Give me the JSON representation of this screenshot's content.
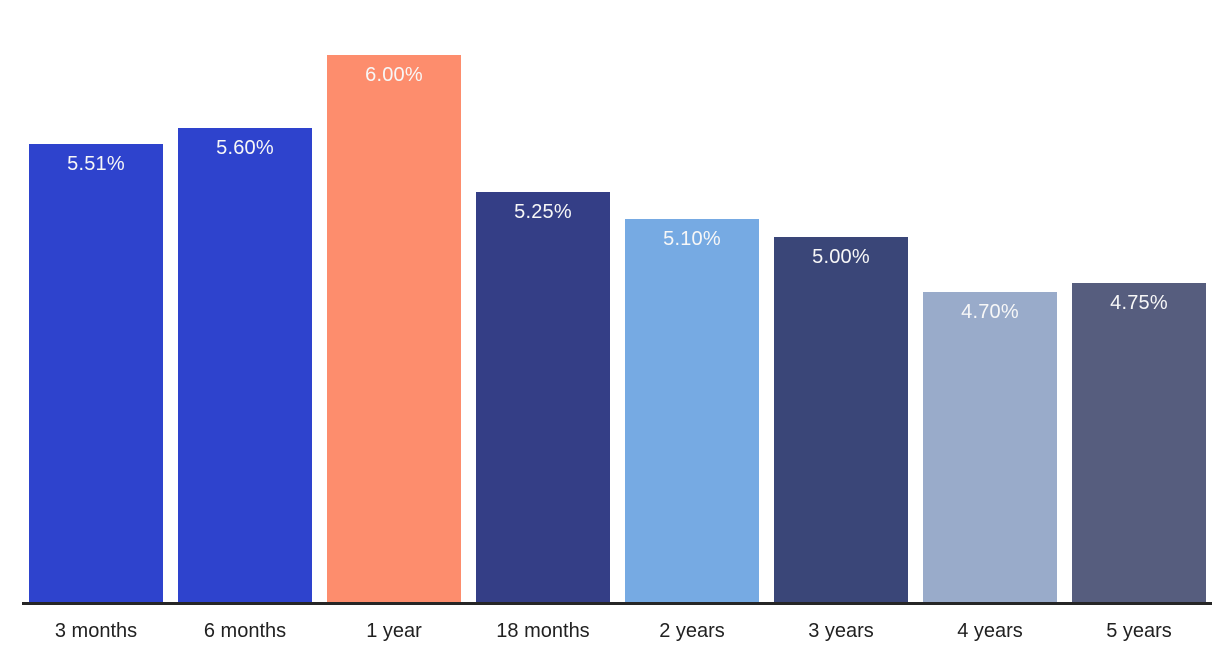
{
  "chart_data": {
    "type": "bar",
    "title": "",
    "xlabel": "",
    "ylabel": "",
    "categories": [
      "3 months",
      "6 months",
      "1 year",
      "18 months",
      "2 years",
      "3 years",
      "4 years",
      "5 years"
    ],
    "values": [
      5.51,
      5.6,
      6.0,
      5.25,
      5.1,
      5.0,
      4.7,
      4.75
    ],
    "value_labels": [
      "5.51%",
      "5.60%",
      "6.00%",
      "5.25%",
      "5.10%",
      "5.00%",
      "4.70%",
      "4.75%"
    ],
    "bar_colors": [
      "#2e43cd",
      "#2e43cd",
      "#fd8d6d",
      "#343e86",
      "#76aae3",
      "#3a4678",
      "#99abca",
      "#565d7e"
    ],
    "value_label_color": "#f7f7f7",
    "tick_label_color": "#212121",
    "axis_color": "#262626",
    "background_color": "#ffffff",
    "ylim": [
      3.0,
      6.3
    ],
    "grid": false,
    "legend": false
  }
}
